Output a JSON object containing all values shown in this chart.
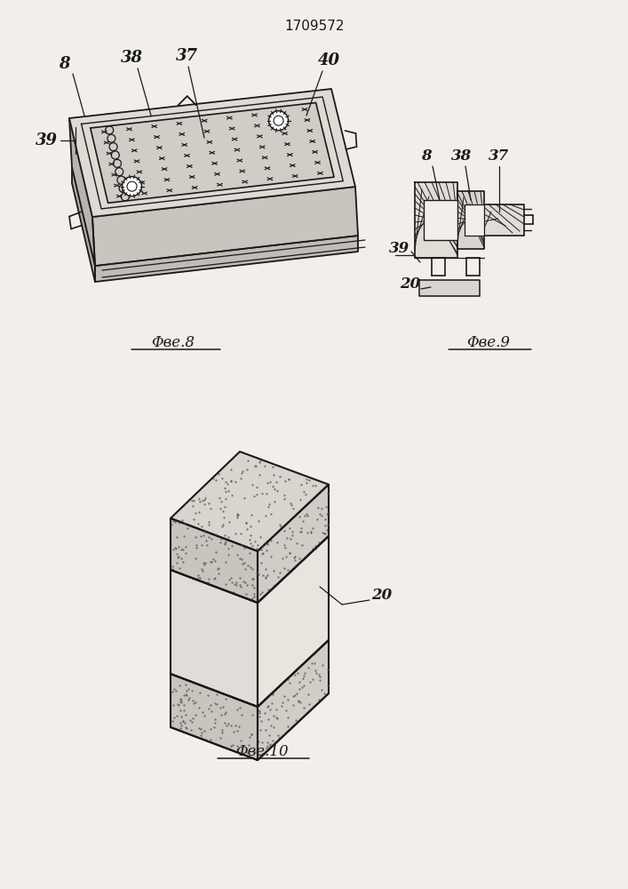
{
  "title": "1709572",
  "bg_color": "#f2efea",
  "line_color": "#1a1a1a",
  "fig8_label": "Φве.8",
  "fig9_label": "Φве.9",
  "fig10_label": "Φве.10"
}
